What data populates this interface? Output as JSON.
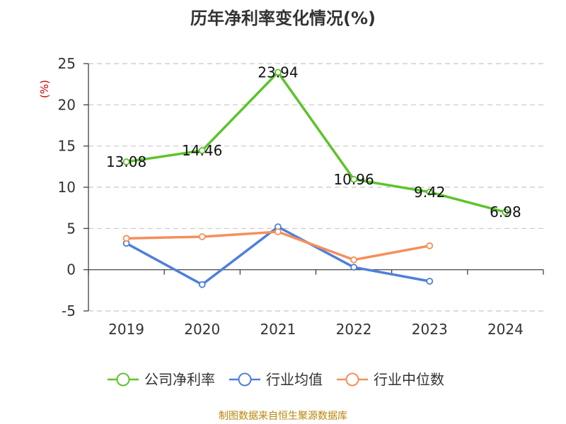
{
  "title": "历年净利率变化情况(%)",
  "source": "制图数据来自恒生聚源数据库",
  "chart_data": {
    "type": "line",
    "title": "历年净利率变化情况(%)",
    "xlabel": "",
    "ylabel": "(%)",
    "categories": [
      "2019",
      "2020",
      "2021",
      "2022",
      "2023",
      "2024"
    ],
    "ylim": [
      -5,
      25
    ],
    "yticks": [
      25,
      20,
      15,
      10,
      5,
      0,
      -5
    ],
    "grid": true,
    "legend_position": "bottom",
    "series": [
      {
        "name": "公司净利率",
        "color": "#5cc42a",
        "labeled": true,
        "values": [
          13.08,
          14.46,
          23.94,
          10.96,
          9.42,
          6.98
        ],
        "labels": [
          "13.08",
          "14.46",
          "23.94",
          "10.96",
          "9.42",
          "6.98"
        ]
      },
      {
        "name": "行业均值",
        "color": "#4f7fd9",
        "labeled": false,
        "values": [
          3.2,
          -1.8,
          5.2,
          0.3,
          -1.4,
          null
        ]
      },
      {
        "name": "行业中位数",
        "color": "#f58f5a",
        "labeled": false,
        "values": [
          3.8,
          4.0,
          4.6,
          1.2,
          2.9,
          null
        ]
      }
    ]
  }
}
